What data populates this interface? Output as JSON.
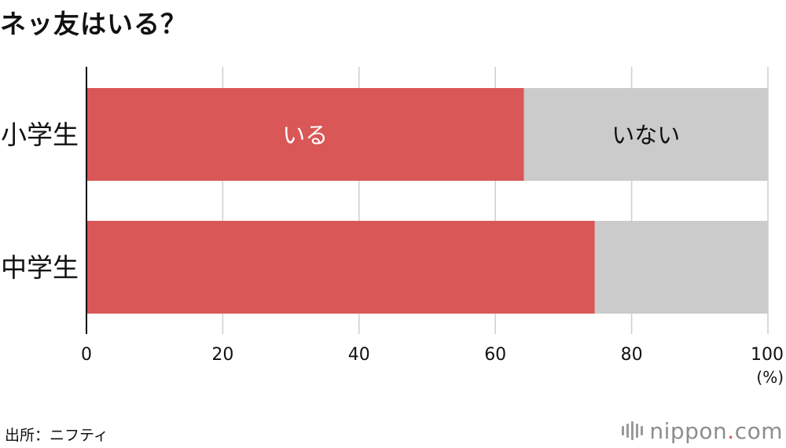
{
  "title": "ネッ友はいる？",
  "source": "出所：ニフティ",
  "logo": {
    "name": "nippon",
    "dot": ".",
    "tld": "com"
  },
  "colors": {
    "yes": "#d95757",
    "no": "#cbcbcb",
    "grid": "#cfcfcf",
    "axis": "#000000"
  },
  "chart_data": {
    "type": "bar",
    "orientation": "horizontal",
    "stacked": true,
    "categories": [
      "小学生",
      "中学生"
    ],
    "series": [
      {
        "name": "いる",
        "values": [
          64.2,
          74.6
        ],
        "color": "#d95757"
      },
      {
        "name": "いない",
        "values": [
          35.8,
          25.4
        ],
        "color": "#cbcbcb"
      }
    ],
    "xlim": [
      0,
      100
    ],
    "xticks": [
      0,
      20,
      40,
      60,
      80,
      100
    ],
    "xunit": "(%)",
    "grid": true
  }
}
